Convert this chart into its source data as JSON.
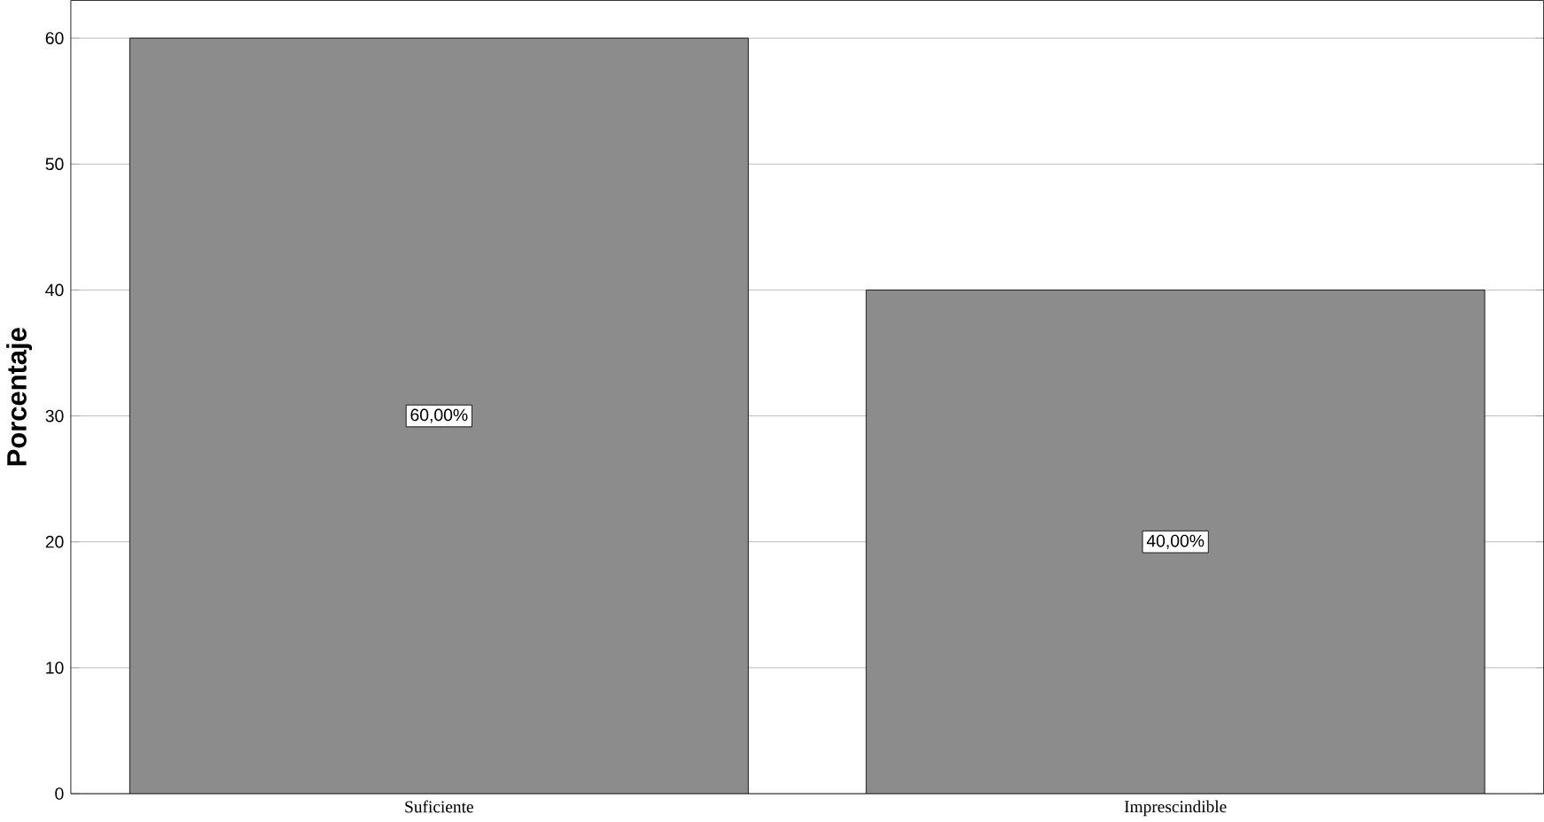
{
  "chart_data": {
    "type": "bar",
    "ylabel": "Porcentaje",
    "categories": [
      "Suficiente",
      "Imprescindible"
    ],
    "values": [
      60,
      40
    ],
    "value_labels": [
      "60,00%",
      "40,00%"
    ],
    "color": "#8c8c8c",
    "ylim": [
      0,
      63
    ],
    "yticks": [
      0,
      10,
      20,
      30,
      40,
      50,
      60
    ],
    "grid": "y"
  }
}
